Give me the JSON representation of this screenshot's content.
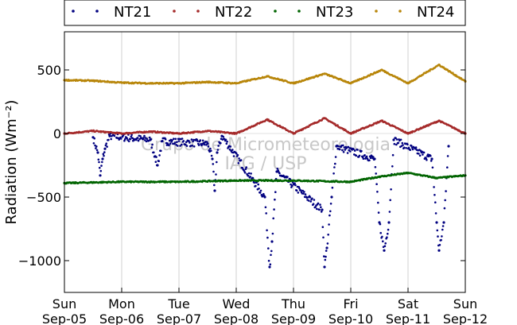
{
  "chart_data": {
    "type": "scatter",
    "ylabel": "Radiation (Wm⁻²)",
    "ylim": [
      -1250,
      800
    ],
    "xlim": [
      "Sep-05",
      "Sep-12"
    ],
    "grid": "vertical lines at day ticks",
    "legend_placement": "top",
    "yticks": [
      "500",
      "0",
      "−500",
      "−1000"
    ],
    "xticks": [
      {
        "day": "Sun",
        "date": "Sep-05"
      },
      {
        "day": "Mon",
        "date": "Sep-06"
      },
      {
        "day": "Tue",
        "date": "Sep-07"
      },
      {
        "day": "Wed",
        "date": "Sep-08"
      },
      {
        "day": "Thu",
        "date": "Sep-09"
      },
      {
        "day": "Fri",
        "date": "Sep-10"
      },
      {
        "day": "Sat",
        "date": "Sep-11"
      },
      {
        "day": "Sun",
        "date": "Sep-12"
      }
    ],
    "series": [
      {
        "name": "NT21",
        "color": "#000080",
        "points": [
          [
            "Sep-05 12:00",
            -30
          ],
          [
            "Sep-05 14:00",
            -150
          ],
          [
            "Sep-05 15:00",
            -330
          ],
          [
            "Sep-05 16:00",
            -200
          ],
          [
            "Sep-05 17:00",
            -120
          ],
          [
            "Sep-05 19:00",
            -20
          ],
          [
            "Sep-06 12:00",
            -50
          ],
          [
            "Sep-06 14:00",
            -180
          ],
          [
            "Sep-06 15:00",
            -250
          ],
          [
            "Sep-06 17:00",
            -60
          ],
          [
            "Sep-07 12:00",
            -80
          ],
          [
            "Sep-07 14:00",
            -200
          ],
          [
            "Sep-07 15:00",
            -450
          ],
          [
            "Sep-07 16:00",
            -150
          ],
          [
            "Sep-07 18:00",
            -20
          ],
          [
            "Sep-08 12:00",
            -500
          ],
          [
            "Sep-08 14:00",
            -1050
          ],
          [
            "Sep-08 15:00",
            -850
          ],
          [
            "Sep-08 17:00",
            -300
          ],
          [
            "Sep-09 12:00",
            -600
          ],
          [
            "Sep-09 13:00",
            -1050
          ],
          [
            "Sep-09 14:00",
            -900
          ],
          [
            "Sep-09 16:00",
            -500
          ],
          [
            "Sep-09 18:00",
            -100
          ],
          [
            "Sep-10 10:00",
            -200
          ],
          [
            "Sep-10 12:00",
            -700
          ],
          [
            "Sep-10 14:00",
            -920
          ],
          [
            "Sep-10 16:00",
            -700
          ],
          [
            "Sep-10 18:00",
            -50
          ],
          [
            "Sep-11 10:00",
            -200
          ],
          [
            "Sep-11 12:00",
            -700
          ],
          [
            "Sep-11 13:00",
            -920
          ],
          [
            "Sep-11 15:00",
            -700
          ],
          [
            "Sep-11 17:00",
            -100
          ]
        ]
      },
      {
        "name": "NT22",
        "color": "#a52a2a",
        "points": [
          [
            "Sep-05 00:00",
            0
          ],
          [
            "Sep-05 12:00",
            20
          ],
          [
            "Sep-06 00:00",
            0
          ],
          [
            "Sep-06 12:00",
            15
          ],
          [
            "Sep-07 00:00",
            0
          ],
          [
            "Sep-07 12:00",
            20
          ],
          [
            "Sep-08 00:00",
            0
          ],
          [
            "Sep-08 13:00",
            110
          ],
          [
            "Sep-09 00:00",
            0
          ],
          [
            "Sep-09 13:00",
            120
          ],
          [
            "Sep-10 00:00",
            0
          ],
          [
            "Sep-10 13:00",
            100
          ],
          [
            "Sep-11 00:00",
            0
          ],
          [
            "Sep-11 13:00",
            100
          ],
          [
            "Sep-12 00:00",
            0
          ]
        ]
      },
      {
        "name": "NT23",
        "color": "#006400",
        "points": [
          [
            "Sep-05 00:00",
            -390
          ],
          [
            "Sep-06 00:00",
            -380
          ],
          [
            "Sep-07 00:00",
            -380
          ],
          [
            "Sep-08 00:00",
            -370
          ],
          [
            "Sep-09 00:00",
            -370
          ],
          [
            "Sep-10 00:00",
            -380
          ],
          [
            "Sep-10 12:00",
            -340
          ],
          [
            "Sep-11 00:00",
            -310
          ],
          [
            "Sep-11 12:00",
            -350
          ],
          [
            "Sep-12 00:00",
            -330
          ]
        ]
      },
      {
        "name": "NT24",
        "color": "#b8860b",
        "points": [
          [
            "Sep-05 00:00",
            420
          ],
          [
            "Sep-05 12:00",
            415
          ],
          [
            "Sep-06 00:00",
            400
          ],
          [
            "Sep-06 12:00",
            395
          ],
          [
            "Sep-07 00:00",
            395
          ],
          [
            "Sep-07 12:00",
            405
          ],
          [
            "Sep-08 00:00",
            395
          ],
          [
            "Sep-08 13:00",
            450
          ],
          [
            "Sep-09 00:00",
            395
          ],
          [
            "Sep-09 13:00",
            470
          ],
          [
            "Sep-10 00:00",
            395
          ],
          [
            "Sep-10 13:00",
            500
          ],
          [
            "Sep-11 00:00",
            395
          ],
          [
            "Sep-11 13:00",
            540
          ],
          [
            "Sep-12 00:00",
            410
          ]
        ]
      }
    ],
    "watermark": [
      "Grupo de Micrometeorologia",
      "IAG / USP"
    ]
  }
}
